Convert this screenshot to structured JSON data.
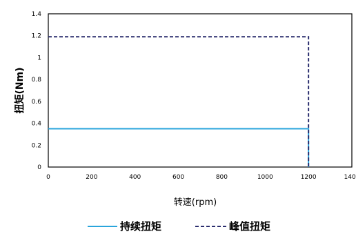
{
  "chart_data": {
    "type": "line",
    "xlabel": "转速(rpm)",
    "ylabel": "扭矩(Nm)",
    "xlim": [
      0,
      1400
    ],
    "ylim": [
      0,
      1.4
    ],
    "x_ticks": [
      "0",
      "200",
      "400",
      "600",
      "800",
      "1000",
      "1200",
      "1400"
    ],
    "y_ticks": [
      "0",
      "0.2",
      "0.4",
      "0.6",
      "0.8",
      "1",
      "1.2",
      "1.4"
    ],
    "grid": false,
    "legend_position": "bottom",
    "series": [
      {
        "name": "持续扭矩",
        "color": "#2aa5dc",
        "style": "solid",
        "points": [
          [
            0,
            0.35
          ],
          [
            1200,
            0.35
          ],
          [
            1200,
            0
          ]
        ]
      },
      {
        "name": "峰值扭矩",
        "color": "#2b2e6e",
        "style": "dashed",
        "points": [
          [
            0,
            1.19
          ],
          [
            1200,
            1.19
          ],
          [
            1200,
            0
          ]
        ]
      }
    ]
  }
}
